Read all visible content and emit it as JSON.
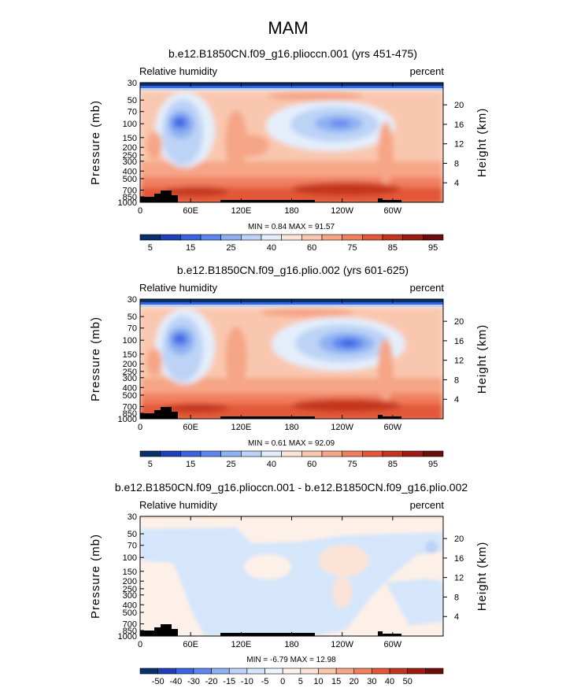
{
  "chart_data": {
    "type": "contour",
    "title": "MAM",
    "variable": "Relative humidity",
    "units": "percent",
    "xlabel_ticks": [
      "0",
      "60E",
      "120E",
      "180",
      "120W",
      "60W"
    ],
    "x_tick_values": [
      0,
      60,
      120,
      180,
      240,
      300
    ],
    "x_range": [
      0,
      360
    ],
    "pressure_ticks": [
      "30",
      "50",
      "70",
      "100",
      "150",
      "200",
      "250",
      "300",
      "400",
      "500",
      "700",
      "850",
      "1000"
    ],
    "pressure_values": [
      30,
      50,
      70,
      100,
      150,
      200,
      250,
      300,
      400,
      500,
      700,
      850,
      1000
    ],
    "pressure_range": [
      30,
      1000
    ],
    "ylabel_left": "Pressure  (mb)",
    "ylabel_right": "Height  (km)",
    "height_ticks": [
      "20",
      "16",
      "12",
      "8",
      "4"
    ],
    "height_values": [
      20,
      16,
      12,
      8,
      4
    ],
    "scale_height_km": 7,
    "panels": [
      {
        "title": "b.e12.B1850CN.f09_g16.plioccn.001 (yrs 451-475)",
        "stats": "MIN =    0.84   MAX =   91.57",
        "min": 0.84,
        "max": 91.57,
        "colorbar": "abs"
      },
      {
        "title": "b.e12.B1850CN.f09_g16.plio.002 (yrs 601-625)",
        "stats": "MIN =    0.61   MAX =   92.09",
        "min": 0.61,
        "max": 92.09,
        "colorbar": "abs"
      },
      {
        "title": "b.e12.B1850CN.f09_g16.plioccn.001 - b.e12.B1850CN.f09_g16.plio.002",
        "stats": "MIN =   -6.79   MAX =   12.98",
        "min": -6.79,
        "max": 12.98,
        "colorbar": "diff"
      }
    ],
    "colorbars": {
      "abs": {
        "colors": [
          "#08306b",
          "#1e3fb8",
          "#3a63e0",
          "#5f86ee",
          "#8fb0f2",
          "#bcd3f6",
          "#e4eefb",
          "#fbe3d6",
          "#f9c7af",
          "#f6a586",
          "#f07f5e",
          "#e25838",
          "#c4351f",
          "#9c1b13",
          "#6e0b0b"
        ],
        "labels": [
          "5",
          "15",
          "25",
          "40",
          "60",
          "75",
          "85",
          "95"
        ]
      },
      "diff": {
        "colors": [
          "#08306b",
          "#1e3fb8",
          "#3a63e0",
          "#5f86ee",
          "#8fb0f2",
          "#bcd3f6",
          "#d6e6fa",
          "#eef4fd",
          "#fdf0e8",
          "#fbe3d6",
          "#f9c7af",
          "#f6a586",
          "#f07f5e",
          "#e25838",
          "#c4351f",
          "#9c1b13",
          "#6e0b0b"
        ],
        "labels": [
          "-50",
          "-40",
          "-30",
          "-20",
          "-15",
          "-10",
          "-5",
          "0",
          "5",
          "10",
          "15",
          "20",
          "30",
          "40",
          "50"
        ]
      }
    }
  }
}
